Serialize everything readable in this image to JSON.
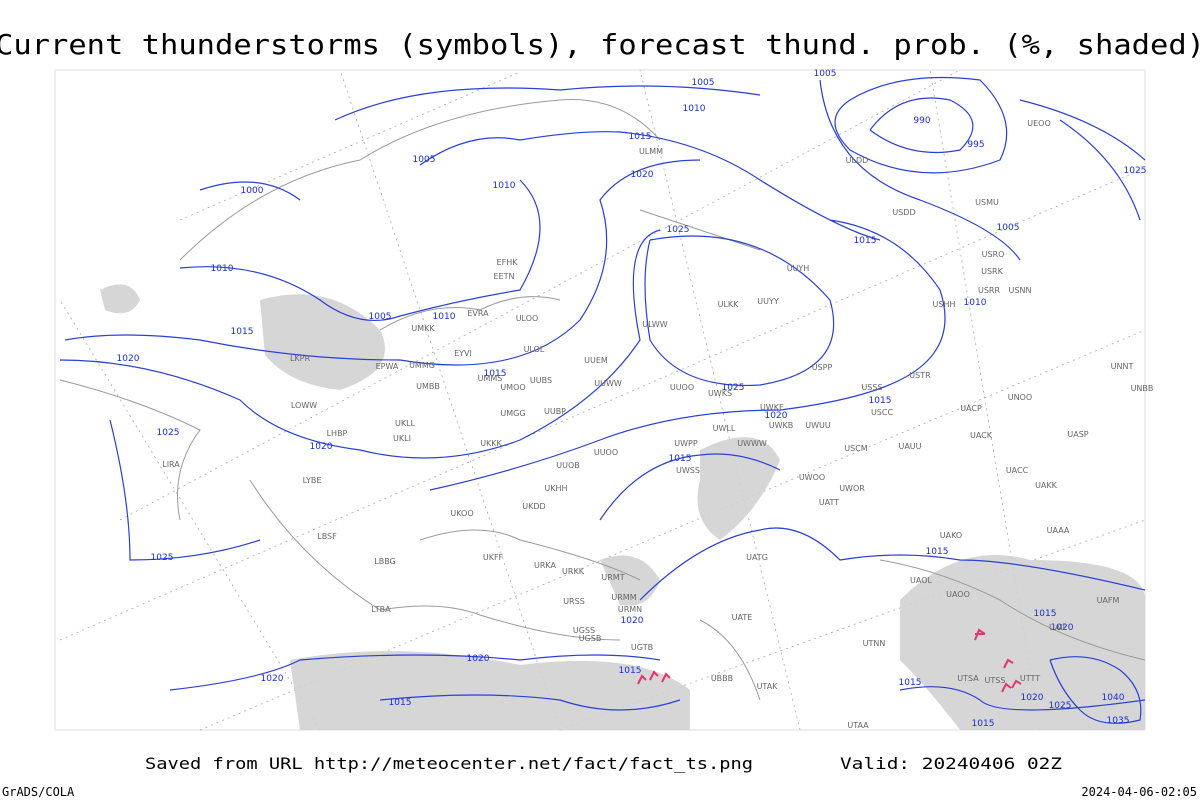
{
  "header": {
    "title": "Current thunderstorms (symbols), forecast thund. prob. (%, shaded)"
  },
  "footer": {
    "saved": "Saved from URL http://meteocenter.net/fact/fact_ts.png",
    "valid": "Valid: 20240406 02Z",
    "left": "GrADS/COLA",
    "right": "2024-04-06-02:05"
  },
  "isobar_labels": [
    "1005",
    "1005",
    "1010",
    "1015",
    "990",
    "995",
    "1025",
    "1005",
    "1000",
    "1010",
    "1020",
    "1015",
    "1005",
    "1025",
    "1010",
    "1010",
    "1005",
    "1010",
    "1015",
    "1020",
    "1015",
    "1025",
    "1015",
    "1020",
    "1025",
    "1020",
    "1015",
    "1025",
    "1015",
    "1020",
    "1015",
    "1020",
    "1020",
    "1015",
    "1020",
    "1015",
    "1020",
    "1040",
    "1025",
    "1015",
    "1015",
    "1035"
  ],
  "stations": [
    "ULMM",
    "UUYH",
    "ULKK",
    "UUYY",
    "ULWW",
    "ULOL",
    "UUEM",
    "UUWW",
    "UUOO",
    "UWKS",
    "USPP",
    "USSS",
    "USCC",
    "USTR",
    "UWKE",
    "UWKB",
    "UWUU",
    "UWLL",
    "UWWW",
    "USCM",
    "UAUU",
    "UACK",
    "UACP",
    "UNOO",
    "UASP",
    "UACC",
    "UAKK",
    "UAAA",
    "UAKO",
    "UAOL",
    "UAOO",
    "UATG",
    "UATT",
    "UWOR",
    "UWOO",
    "UWSS",
    "UWPP",
    "UUOB",
    "UUOO",
    "UKHH",
    "UKDD",
    "UKOO",
    "UKFF",
    "URKA",
    "URKK",
    "URMT",
    "URMM",
    "URMN",
    "URSS",
    "UGSS",
    "UGSB",
    "UGTB",
    "UBBB",
    "UTAK",
    "UATE",
    "LKPR",
    "LOWW",
    "LHBP",
    "EPWA",
    "UMMG",
    "EYVI",
    "UMMS",
    "UMBB",
    "UMKK",
    "EVRA",
    "ULOO",
    "EFHK",
    "EETN",
    "UKLL",
    "UKLI",
    "UKKK",
    "UMGG",
    "UUBP",
    "UUBS",
    "UMOO",
    "LIRA",
    "LYBE",
    "LBSF",
    "LBBG",
    "LTBA",
    "USDD",
    "USMU",
    "USRO",
    "USRK",
    "USRR",
    "USHH",
    "USNN",
    "ULDD",
    "UEOO",
    "UNNT",
    "UNBB",
    "UTAA",
    "UTSA",
    "UTSS",
    "UTNN",
    "UTTT",
    "UAFM",
    "UAII"
  ]
}
